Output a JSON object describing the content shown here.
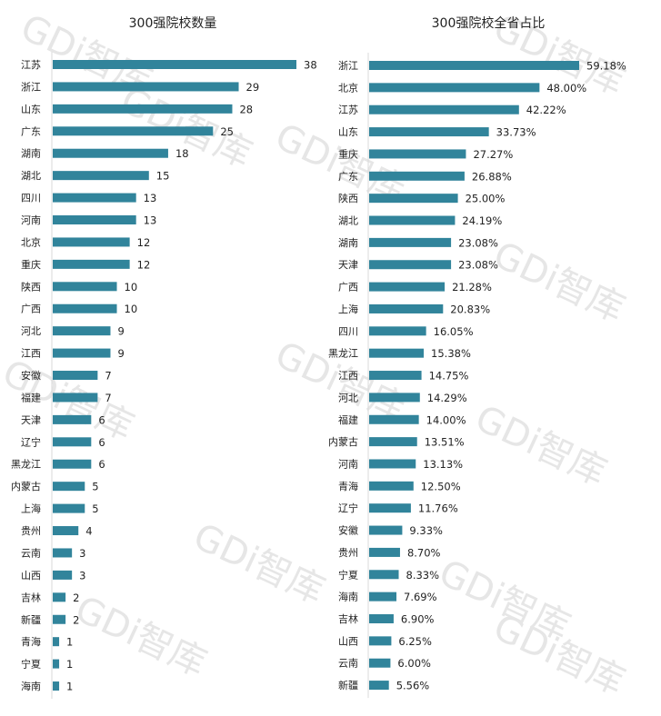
{
  "watermark": "GDi智库",
  "bar_color": "#31849B",
  "chart_data": [
    {
      "type": "bar",
      "orientation": "horizontal",
      "title": "300强院校数量",
      "categories": [
        "江苏",
        "浙江",
        "山东",
        "广东",
        "湖南",
        "湖北",
        "四川",
        "河南",
        "北京",
        "重庆",
        "陕西",
        "广西",
        "河北",
        "江西",
        "安徽",
        "福建",
        "天津",
        "辽宁",
        "黑龙江",
        "内蒙古",
        "上海",
        "贵州",
        "云南",
        "山西",
        "吉林",
        "新疆",
        "青海",
        "宁夏",
        "海南"
      ],
      "values": [
        38,
        29,
        28,
        25,
        18,
        15,
        13,
        13,
        12,
        12,
        10,
        10,
        9,
        9,
        7,
        7,
        6,
        6,
        6,
        5,
        5,
        4,
        3,
        3,
        2,
        2,
        1,
        1,
        1
      ],
      "labels": [
        "38",
        "29",
        "28",
        "25",
        "18",
        "15",
        "13",
        "13",
        "12",
        "12",
        "10",
        "10",
        "9",
        "9",
        "7",
        "7",
        "6",
        "6",
        "6",
        "5",
        "5",
        "4",
        "3",
        "3",
        "2",
        "2",
        "1",
        "1",
        "1"
      ],
      "xlim": [
        0,
        38
      ],
      "grid": false
    },
    {
      "type": "bar",
      "orientation": "horizontal",
      "title": "300强院校全省占比",
      "categories": [
        "浙江",
        "北京",
        "江苏",
        "山东",
        "重庆",
        "广东",
        "陕西",
        "湖北",
        "湖南",
        "天津",
        "广西",
        "上海",
        "四川",
        "黑龙江",
        "江西",
        "河北",
        "福建",
        "内蒙古",
        "河南",
        "青海",
        "辽宁",
        "安徽",
        "贵州",
        "宁夏",
        "海南",
        "吉林",
        "山西",
        "云南",
        "新疆"
      ],
      "values": [
        59.18,
        48.0,
        42.22,
        33.73,
        27.27,
        26.88,
        25.0,
        24.19,
        23.08,
        23.08,
        21.28,
        20.83,
        16.05,
        15.38,
        14.75,
        14.29,
        14.0,
        13.51,
        13.13,
        12.5,
        11.76,
        9.33,
        8.7,
        8.33,
        7.69,
        6.9,
        6.25,
        6.0,
        5.56
      ],
      "labels": [
        "59.18%",
        "48.00%",
        "42.22%",
        "33.73%",
        "27.27%",
        "26.88%",
        "25.00%",
        "24.19%",
        "23.08%",
        "23.08%",
        "21.28%",
        "20.83%",
        "16.05%",
        "15.38%",
        "14.75%",
        "14.29%",
        "14.00%",
        "13.51%",
        "13.13%",
        "12.50%",
        "11.76%",
        "9.33%",
        "8.70%",
        "8.33%",
        "7.69%",
        "6.90%",
        "6.25%",
        "6.00%",
        "5.56%"
      ],
      "xlim": [
        0,
        59.18
      ],
      "grid": false
    }
  ]
}
